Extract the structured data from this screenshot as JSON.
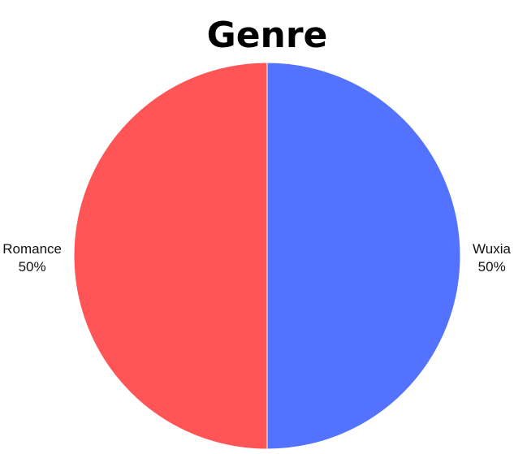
{
  "chart_data": {
    "type": "pie",
    "title": "Genre",
    "slices": [
      {
        "label": "Wuxia",
        "value": 50,
        "percent_label": "50%",
        "color": "#5272FF"
      },
      {
        "label": "Romance",
        "value": 50,
        "percent_label": "50%",
        "color": "#FF5557"
      }
    ],
    "start": "12 o'clock",
    "direction": "clockwise",
    "legend": "none"
  }
}
